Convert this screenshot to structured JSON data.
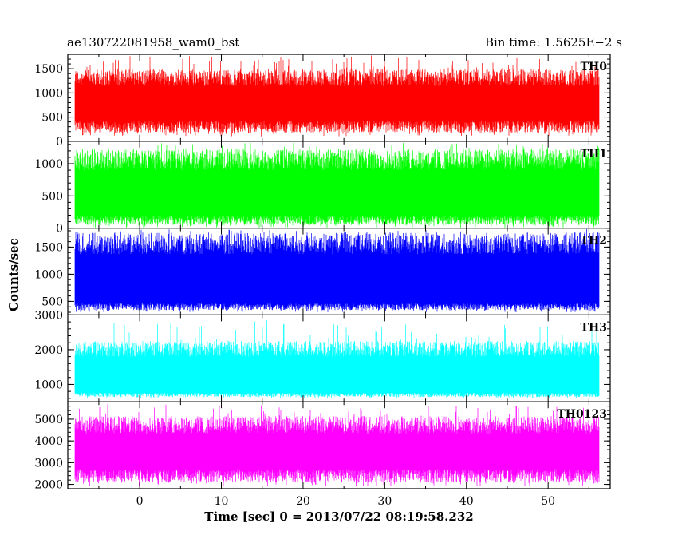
{
  "header": {
    "title": "ae130722081958_wam0_bst",
    "bin_time": "Bin time: 1.5625E−2 s"
  },
  "chart_data": {
    "type": "line",
    "xlabel": "Time [sec] 0 = 2013/07/22 08:19:58.232",
    "ylabel": "Counts/sec",
    "xlim": [
      -8.8,
      57.6
    ],
    "x_ticks": [
      0,
      10,
      20,
      30,
      40,
      50
    ],
    "data_x_range": [
      -7.9,
      56.2
    ],
    "grid": false,
    "legend": "none",
    "panels": [
      {
        "name": "TH0",
        "color": "#ff0000",
        "ylim": [
          0,
          1800
        ],
        "y_ticks": [
          0,
          500,
          1000,
          1500
        ],
        "base": 300,
        "top": 1300,
        "min": 100,
        "peak": 1780
      },
      {
        "name": "TH1",
        "color": "#00ff00",
        "ylim": [
          0,
          1350
        ],
        "y_ticks": [
          0,
          500,
          1000
        ],
        "base": 120,
        "top": 1050,
        "min": 0,
        "peak": 1330
      },
      {
        "name": "TH2",
        "color": "#0000ff",
        "ylim": [
          250,
          1850
        ],
        "y_ticks": [
          500,
          1000,
          1500
        ],
        "base": 400,
        "top": 1550,
        "min": 300,
        "peak": 1850
      },
      {
        "name": "TH3",
        "color": "#00ffff",
        "ylim": [
          500,
          3000
        ],
        "y_ticks": [
          1000,
          2000,
          3000
        ],
        "base": 700,
        "top": 2000,
        "min": 600,
        "peak": 2900
      },
      {
        "name": "TH0123",
        "color": "#ff00ff",
        "ylim": [
          1800,
          5800
        ],
        "y_ticks": [
          2000,
          3000,
          4000,
          5000
        ],
        "base": 2400,
        "top": 4700,
        "min": 1900,
        "peak": 5700
      }
    ]
  }
}
